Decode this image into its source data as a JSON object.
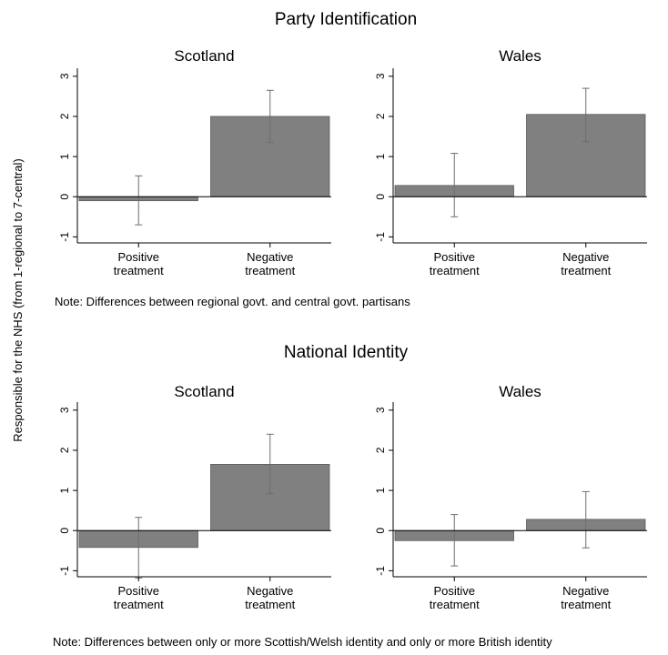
{
  "ylabel": "Responsible for the NHS (from 1-regional to 7-central)",
  "colors": {
    "bar": "#808080",
    "bar_edge": "#5a5a5a",
    "errorbar": "#6e6e6e",
    "axis": "#000000"
  },
  "sections": [
    {
      "title": "Party Identification",
      "note": "Note: Differences between regional govt. and central govt. partisans"
    },
    {
      "title": "National Identity",
      "note": "Note: Differences between only or more Scottish/Welsh identity and only or more British identity"
    }
  ],
  "chart_data": [
    {
      "type": "bar",
      "section": 0,
      "title": "Scotland",
      "categories": [
        [
          "Positive",
          "treatment"
        ],
        [
          "Negative",
          "treatment"
        ]
      ],
      "values": [
        -0.1,
        2.0
      ],
      "ci_low": [
        -0.7,
        1.35
      ],
      "ci_high": [
        0.52,
        2.65
      ],
      "ylim": [
        -1.15,
        3.2
      ],
      "yticks": [
        -1,
        0,
        1,
        2,
        3
      ]
    },
    {
      "type": "bar",
      "section": 0,
      "title": "Wales",
      "categories": [
        [
          "Positive",
          "treatment"
        ],
        [
          "Negative",
          "treatment"
        ]
      ],
      "values": [
        0.28,
        2.05
      ],
      "ci_low": [
        -0.5,
        1.37
      ],
      "ci_high": [
        1.08,
        2.7
      ],
      "ylim": [
        -1.15,
        3.2
      ],
      "yticks": [
        -1,
        0,
        1,
        2,
        3
      ]
    },
    {
      "type": "bar",
      "section": 1,
      "title": "Scotland",
      "categories": [
        [
          "Positive",
          "treatment"
        ],
        [
          "Negative",
          "treatment"
        ]
      ],
      "values": [
        -0.42,
        1.65
      ],
      "ci_low": [
        -1.18,
        0.92
      ],
      "ci_high": [
        0.33,
        2.4
      ],
      "ylim": [
        -1.15,
        3.2
      ],
      "yticks": [
        -1,
        0,
        1,
        2,
        3
      ]
    },
    {
      "type": "bar",
      "section": 1,
      "title": "Wales",
      "categories": [
        [
          "Positive",
          "treatment"
        ],
        [
          "Negative",
          "treatment"
        ]
      ],
      "values": [
        -0.25,
        0.28
      ],
      "ci_low": [
        -0.88,
        -0.43
      ],
      "ci_high": [
        0.4,
        0.97
      ],
      "ylim": [
        -1.15,
        3.2
      ],
      "yticks": [
        -1,
        0,
        1,
        2,
        3
      ]
    }
  ]
}
